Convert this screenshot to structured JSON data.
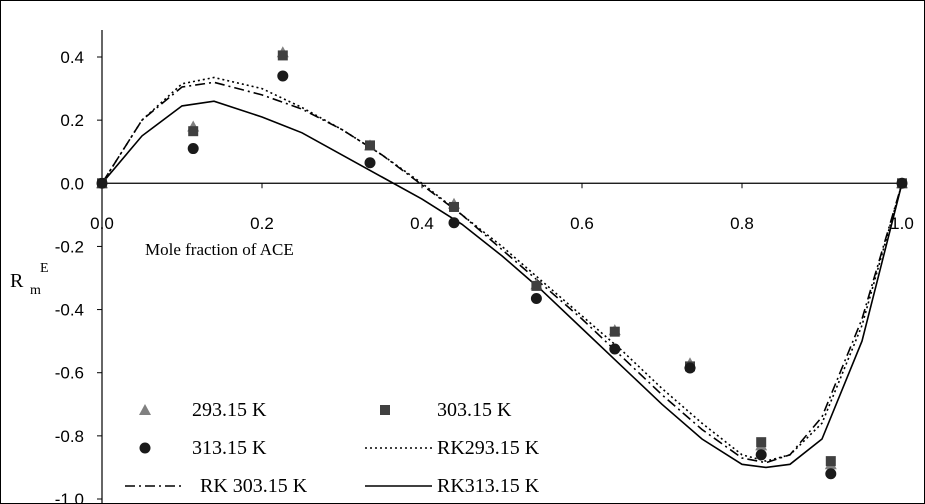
{
  "chart_data": {
    "type": "scatter",
    "xlabel": "Mole fraction of ACE",
    "ylabel": "R",
    "ylabel_sub": "m",
    "ylabel_sup": "E",
    "xlim": [
      0,
      1
    ],
    "ylim": [
      -1.0,
      0.5
    ],
    "x_ticks": [
      0,
      0.2,
      0.4,
      0.6,
      0.8,
      1.0
    ],
    "x_tick_labels": [
      "0.0",
      "0.2",
      "0.4",
      "0.6",
      "0.8",
      "1.0"
    ],
    "y_ticks": [
      0.4,
      0.2,
      0.0,
      -0.2,
      -0.4,
      -0.6,
      -0.8,
      -1.0
    ],
    "y_tick_labels": [
      "0.4",
      "0.2",
      "0.0",
      "-0.2",
      "-0.4",
      "-0.6",
      "-0.8",
      "-1.0"
    ],
    "grid": false,
    "legend_position": "bottom-left",
    "series": [
      {
        "name": "293.15 K",
        "kind": "points",
        "marker": "triangle",
        "color": "#808080",
        "x": [
          0,
          0.114,
          0.226,
          0.335,
          0.44,
          0.543,
          0.641,
          0.735,
          0.824,
          0.911,
          1.0
        ],
        "y": [
          0,
          0.18,
          0.415,
          0.12,
          -0.065,
          -0.32,
          -0.465,
          -0.57,
          -0.83,
          -0.89,
          0
        ]
      },
      {
        "name": "303.15 K",
        "kind": "points",
        "marker": "square",
        "color": "#404040",
        "x": [
          0,
          0.114,
          0.226,
          0.335,
          0.44,
          0.543,
          0.641,
          0.735,
          0.824,
          0.911,
          1.0
        ],
        "y": [
          0,
          0.165,
          0.405,
          0.12,
          -0.075,
          -0.325,
          -0.47,
          -0.58,
          -0.82,
          -0.88,
          0
        ]
      },
      {
        "name": "313.15 K",
        "kind": "points",
        "marker": "circle",
        "color": "#1a1a1a",
        "x": [
          0,
          0.114,
          0.226,
          0.335,
          0.44,
          0.543,
          0.641,
          0.735,
          0.824,
          0.911,
          1.0
        ],
        "y": [
          0,
          0.11,
          0.34,
          0.065,
          -0.125,
          -0.365,
          -0.525,
          -0.585,
          -0.86,
          -0.92,
          0
        ]
      },
      {
        "name": "RK293.15 K",
        "kind": "line",
        "dash": "2,3",
        "x": [
          0,
          0.05,
          0.1,
          0.14,
          0.2,
          0.25,
          0.3,
          0.35,
          0.4,
          0.45,
          0.5,
          0.55,
          0.6,
          0.65,
          0.7,
          0.75,
          0.8,
          0.83,
          0.86,
          0.9,
          0.95,
          1.0
        ],
        "y": [
          0,
          0.2,
          0.315,
          0.335,
          0.3,
          0.24,
          0.17,
          0.09,
          0.0,
          -0.1,
          -0.2,
          -0.31,
          -0.42,
          -0.53,
          -0.65,
          -0.76,
          -0.86,
          -0.88,
          -0.86,
          -0.76,
          -0.45,
          0
        ]
      },
      {
        "name": "RK 303.15 K",
        "kind": "line",
        "dash": "10,4,2,4",
        "x": [
          0,
          0.05,
          0.1,
          0.14,
          0.2,
          0.25,
          0.3,
          0.35,
          0.4,
          0.45,
          0.5,
          0.55,
          0.6,
          0.65,
          0.7,
          0.75,
          0.8,
          0.83,
          0.86,
          0.9,
          0.95,
          1.0
        ],
        "y": [
          0,
          0.2,
          0.305,
          0.32,
          0.28,
          0.235,
          0.17,
          0.09,
          -0.005,
          -0.1,
          -0.21,
          -0.32,
          -0.43,
          -0.55,
          -0.67,
          -0.78,
          -0.87,
          -0.885,
          -0.86,
          -0.74,
          -0.43,
          0
        ]
      },
      {
        "name": "RK313.15 K",
        "kind": "line",
        "dash": "",
        "x": [
          0,
          0.05,
          0.1,
          0.14,
          0.2,
          0.25,
          0.3,
          0.35,
          0.4,
          0.45,
          0.5,
          0.55,
          0.6,
          0.65,
          0.7,
          0.75,
          0.8,
          0.83,
          0.86,
          0.9,
          0.95,
          1.0
        ],
        "y": [
          0,
          0.15,
          0.245,
          0.26,
          0.21,
          0.16,
          0.09,
          0.02,
          -0.05,
          -0.13,
          -0.23,
          -0.34,
          -0.46,
          -0.58,
          -0.7,
          -0.81,
          -0.89,
          -0.9,
          -0.89,
          -0.81,
          -0.5,
          0
        ]
      }
    ]
  }
}
